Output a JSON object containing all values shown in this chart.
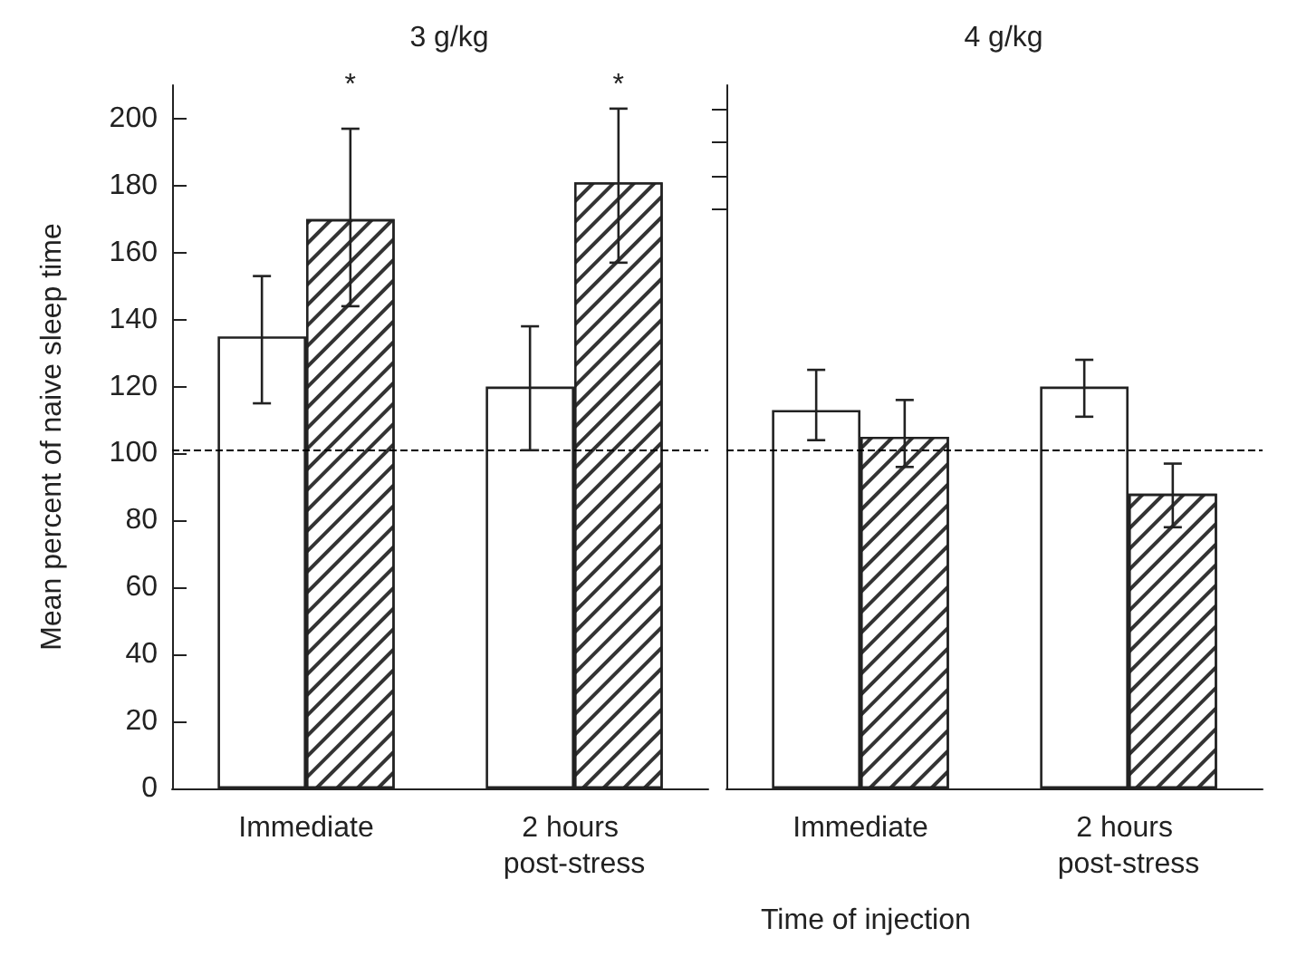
{
  "chart_data": [
    {
      "type": "bar",
      "title": "3 g/kg",
      "xlabel": "Time of injection",
      "ylabel": "Mean percent of naive sleep time",
      "categories": [
        "Immediate",
        "2 hours post-stress"
      ],
      "series": [
        {
          "color": "#ffffff",
          "values": [
            135,
            120
          ],
          "errors": [
            [
              115,
              153
            ],
            [
              101,
              138
            ]
          ]
        },
        {
          "color": "#333333",
          "values": [
            170,
            181
          ],
          "errors": [
            [
              144,
              197
            ],
            [
              157,
              203
            ]
          ]
        }
      ],
      "ylim": [
        0,
        210
      ],
      "yticks": [
        0,
        20,
        40,
        60,
        80,
        100,
        120,
        140,
        160,
        180,
        200
      ],
      "ref_lines": [
        {
          "axis": "y",
          "value": 101,
          "line_style": "dashed",
          "color": "#000000"
        }
      ],
      "annotations": [
        "*",
        "*"
      ],
      "grid": false
    },
    {
      "type": "bar",
      "title": "4 g/kg",
      "categories": [
        "Immediate",
        "2 hours post-stress"
      ],
      "series": [
        {
          "color": "#ffffff",
          "values": [
            113,
            120
          ],
          "errors": [
            [
              104,
              125
            ],
            [
              111,
              128
            ]
          ]
        },
        {
          "color": "#333333",
          "values": [
            105,
            88
          ],
          "errors": [
            [
              96,
              116
            ],
            [
              78,
              97
            ]
          ]
        }
      ],
      "ylim": [
        0,
        210
      ],
      "yticks": [
        {
          "value": 173,
          "label": null
        },
        {
          "value": 183,
          "label": null
        },
        {
          "value": 193,
          "label": null
        },
        {
          "value": 203,
          "label": null
        }
      ],
      "tick_labels": "x",
      "ref_lines": [
        {
          "axis": "y",
          "value": 101,
          "line_style": "dashed",
          "color": "#000000"
        }
      ],
      "grid": false
    }
  ]
}
